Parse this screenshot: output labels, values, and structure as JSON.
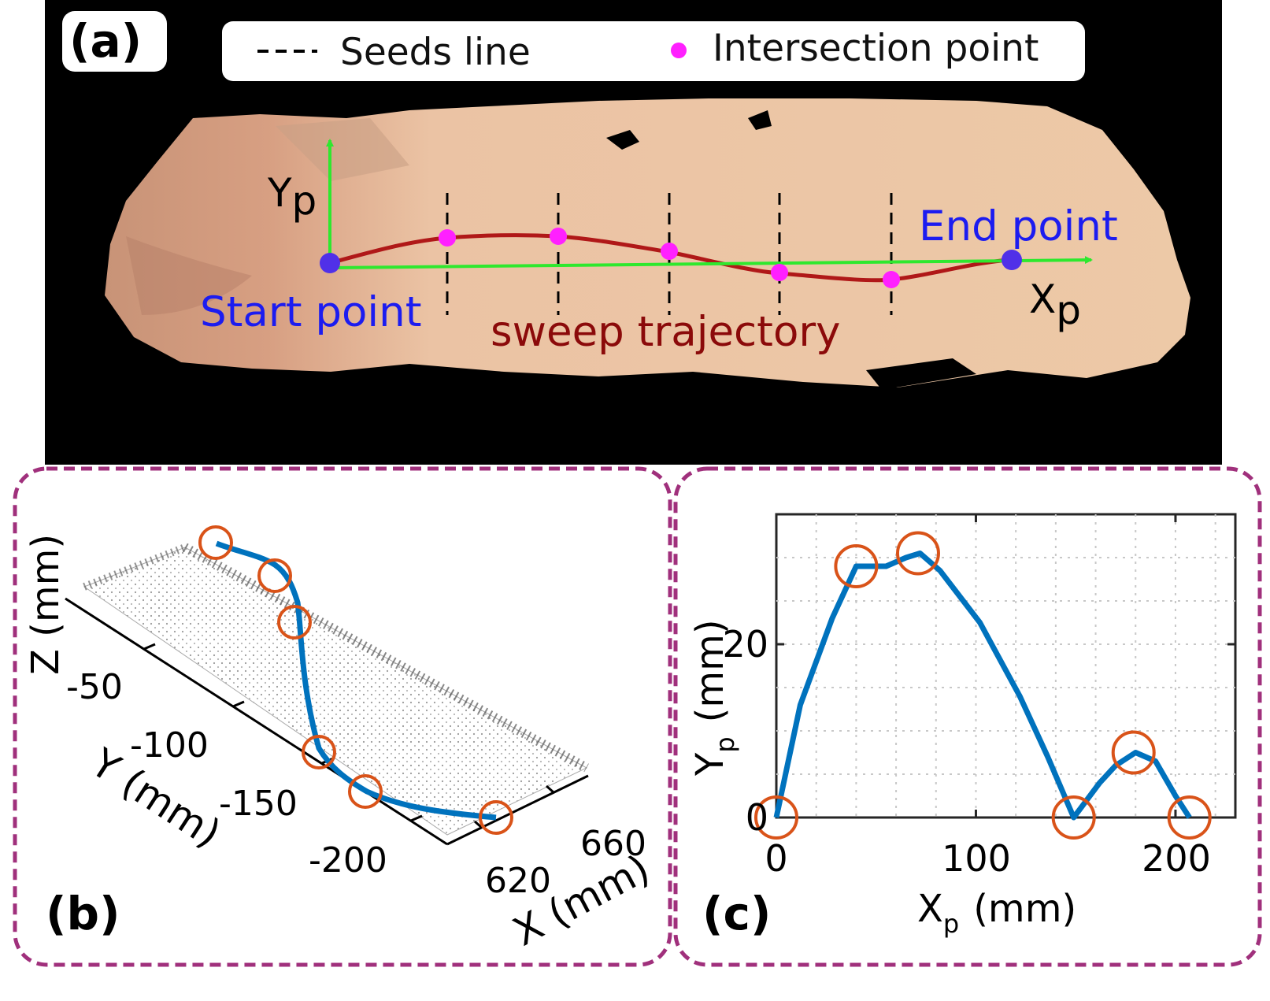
{
  "panel_a": {
    "label": "(a)",
    "legend": {
      "seeds_line": "Seeds line",
      "intersection_point": "Intersection point"
    },
    "axis_y": "Y",
    "axis_y_sub": "p",
    "axis_x": "X",
    "axis_x_sub": "p",
    "start_label": "Start point",
    "end_label": "End point",
    "trajectory_label": "sweep trajectory",
    "colors": {
      "axes": "#2ee82e",
      "trajectory": "#b01818",
      "intersection": "#ff20ff",
      "endpoints": "#5030e8",
      "start_end_text": "#1c1cf0",
      "trajectory_text": "#8b0a0a",
      "background": "#000000",
      "tissue": "#e8b996"
    }
  },
  "panel_b": {
    "label": "(b)",
    "z_label": "Z (mm)",
    "y_label": "Y (mm)",
    "x_label": "X (mm)",
    "y_ticks": [
      "-50",
      "-100",
      "-150",
      "-200"
    ],
    "x_ticks": [
      "620",
      "660"
    ],
    "colors": {
      "curve": "#0072bd",
      "markers": "#d95319",
      "frame": "#a0307c"
    }
  },
  "panel_c": {
    "label": "(c)",
    "xlabel_main": "X",
    "xlabel_sub": "p",
    "xlabel_unit": "(mm)",
    "ylabel_main": "Y",
    "ylabel_sub": "p",
    "ylabel_unit": "(mm)",
    "x_ticks": [
      "0",
      "100",
      "200"
    ],
    "y_ticks": [
      "0",
      "20"
    ]
  },
  "chart_data": {
    "type": "line",
    "xlabel": "Xp (mm)",
    "ylabel": "Yp (mm)",
    "xlim": [
      0,
      230
    ],
    "ylim": [
      0,
      35
    ],
    "grid": true,
    "series": [
      {
        "x": [
          0,
          12,
          28,
          40,
          55,
          65,
          72,
          82,
          102,
          122,
          136,
          149,
          162,
          170,
          180,
          190,
          200,
          207
        ],
        "y": [
          0,
          13,
          23,
          29,
          29,
          30,
          30.5,
          28.5,
          22.5,
          14,
          7,
          0,
          4,
          6,
          7.5,
          6.5,
          2.5,
          0
        ]
      }
    ],
    "highlighted_points": {
      "x": [
        0,
        40,
        71,
        149,
        179,
        207
      ],
      "y": [
        0,
        29,
        30.5,
        0,
        7.5,
        0
      ]
    }
  }
}
